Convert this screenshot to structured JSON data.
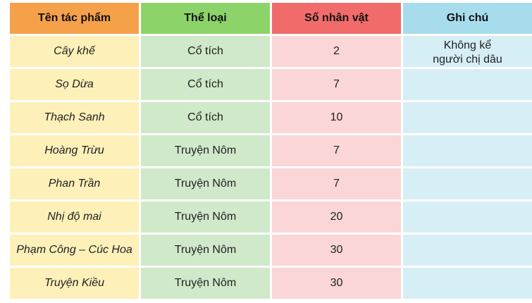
{
  "table": {
    "headers": [
      "Tên tác phẩm",
      "Thể loại",
      "Số nhân vật",
      "Ghi chú"
    ],
    "rows": [
      {
        "title": "Cây khế",
        "genre": "Cổ tích",
        "count": "2",
        "note": "Không kể\nngười chị dâu"
      },
      {
        "title": "Sọ Dừa",
        "genre": "Cổ tích",
        "count": "7",
        "note": ""
      },
      {
        "title": "Thạch Sanh",
        "genre": "Cổ tích",
        "count": "10",
        "note": ""
      },
      {
        "title": "Hoàng Trừu",
        "genre": "Truyện Nôm",
        "count": "7",
        "note": ""
      },
      {
        "title": "Phan Trần",
        "genre": "Truyện Nôm",
        "count": "7",
        "note": ""
      },
      {
        "title": "Nhị độ mai",
        "genre": "Truyện Nôm",
        "count": "20",
        "note": ""
      },
      {
        "title": "Phạm Công – Cúc Hoa",
        "genre": "Truyện Nôm",
        "count": "30",
        "note": ""
      },
      {
        "title": "Truyện Kiều",
        "genre": "Truyện Nôm",
        "count": "30",
        "note": ""
      }
    ]
  },
  "colors": {
    "header_col1": "#f5a14a",
    "header_col2": "#8cd46a",
    "header_col3": "#f26b6b",
    "header_col4": "#a7dcec",
    "body_col1": "#fdf0b9",
    "body_col2": "#cfe9ca",
    "body_col3": "#fad6d6",
    "body_col4": "#d6eef6"
  }
}
